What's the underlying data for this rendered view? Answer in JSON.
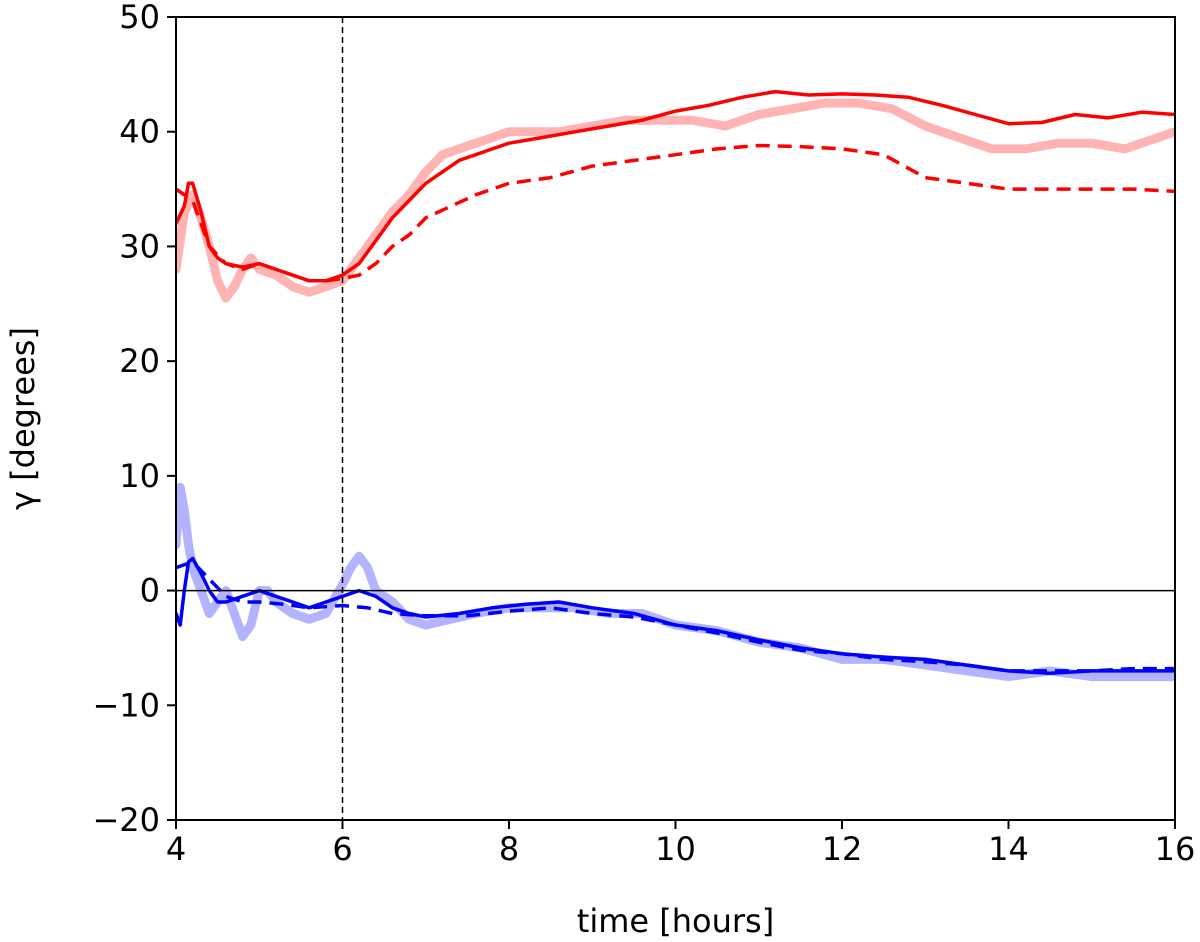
{
  "chart_data": {
    "type": "line",
    "title": "",
    "xlabel": "time [hours]",
    "ylabel": "γ [degrees]",
    "xlim": [
      4,
      16
    ],
    "ylim": [
      -20,
      50
    ],
    "x_ticks": [
      4,
      6,
      8,
      10,
      12,
      14,
      16
    ],
    "y_ticks": [
      -20,
      -10,
      0,
      10,
      20,
      30,
      40,
      50
    ],
    "y_tick_labels": [
      "−20",
      "−10",
      "0",
      "10",
      "20",
      "30",
      "40",
      "50"
    ],
    "grid": false,
    "legend": "none",
    "reference_lines": {
      "vertical_dashed_x": 6,
      "horizontal_solid_y": 0
    },
    "series": [
      {
        "style": "thick-light",
        "color": "#ffb3b3",
        "x": [
          4.0,
          4.1,
          4.2,
          4.3,
          4.4,
          4.5,
          4.6,
          4.7,
          4.8,
          4.9,
          5.0,
          5.2,
          5.4,
          5.6,
          5.8,
          6.0,
          6.2,
          6.4,
          6.6,
          6.8,
          7.0,
          7.2,
          7.4,
          7.6,
          7.8,
          8.0,
          8.3,
          8.6,
          9.0,
          9.4,
          9.8,
          10.2,
          10.6,
          11.0,
          11.4,
          11.8,
          12.2,
          12.6,
          13.0,
          13.4,
          13.8,
          14.2,
          14.6,
          15.0,
          15.4,
          15.8,
          16.0
        ],
        "values": [
          28,
          33,
          34.5,
          32.5,
          30,
          27,
          25.5,
          26.5,
          28,
          29,
          28,
          27.5,
          26.5,
          26,
          26.5,
          27,
          29,
          31,
          33,
          34.5,
          36.5,
          38,
          38.5,
          39,
          39.5,
          40,
          40,
          40,
          40.5,
          41,
          41,
          41,
          40.5,
          41.5,
          42,
          42.5,
          42.5,
          42,
          40.5,
          39.5,
          38.5,
          38.5,
          39,
          39,
          38.5,
          39.5,
          40
        ]
      },
      {
        "style": "solid",
        "color": "#ff0000",
        "x": [
          4.0,
          4.1,
          4.15,
          4.2,
          4.3,
          4.4,
          4.5,
          4.6,
          4.8,
          5.0,
          5.2,
          5.4,
          5.6,
          5.8,
          6.0,
          6.2,
          6.4,
          6.6,
          6.8,
          7.0,
          7.2,
          7.4,
          7.6,
          7.8,
          8.0,
          8.4,
          8.8,
          9.2,
          9.6,
          10.0,
          10.4,
          10.8,
          11.2,
          11.6,
          12.0,
          12.4,
          12.8,
          13.2,
          13.6,
          14.0,
          14.4,
          14.8,
          15.2,
          15.6,
          16.0
        ],
        "values": [
          32,
          33.5,
          35.5,
          35.5,
          33,
          30,
          29,
          28.5,
          28.2,
          28.5,
          28,
          27.5,
          27,
          27,
          27.5,
          28.5,
          30.5,
          32.5,
          34,
          35.5,
          36.5,
          37.5,
          38,
          38.5,
          39,
          39.5,
          40,
          40.5,
          41,
          41.8,
          42.3,
          43,
          43.5,
          43.2,
          43.3,
          43.2,
          43,
          42.3,
          41.5,
          40.7,
          40.8,
          41.5,
          41.2,
          41.7,
          41.5
        ]
      },
      {
        "style": "dashed",
        "color": "#ff0000",
        "x": [
          4.0,
          4.2,
          4.4,
          4.6,
          4.8,
          5.0,
          5.2,
          5.4,
          5.6,
          5.8,
          6.0,
          6.2,
          6.4,
          6.6,
          6.8,
          7.0,
          7.3,
          7.6,
          8.0,
          8.5,
          9.0,
          9.5,
          10.0,
          10.5,
          11.0,
          11.5,
          12.0,
          12.5,
          13.0,
          13.5,
          14.0,
          14.5,
          15.0,
          15.5,
          16.0
        ],
        "values": [
          35,
          34,
          30,
          28.5,
          28,
          28.5,
          28,
          27.5,
          27,
          27,
          27.2,
          27.5,
          28.5,
          30,
          31,
          32.5,
          33.5,
          34.5,
          35.5,
          36,
          37,
          37.5,
          38,
          38.5,
          38.8,
          38.7,
          38.5,
          38,
          36,
          35.5,
          35,
          35,
          35,
          35,
          34.8
        ]
      },
      {
        "style": "thick-light",
        "color": "#b3b3ff",
        "x": [
          4.0,
          4.05,
          4.1,
          4.15,
          4.2,
          4.3,
          4.4,
          4.5,
          4.6,
          4.7,
          4.8,
          4.9,
          5.0,
          5.1,
          5.2,
          5.4,
          5.6,
          5.8,
          6.0,
          6.1,
          6.2,
          6.3,
          6.4,
          6.6,
          6.8,
          7.0,
          7.3,
          7.6,
          8.0,
          8.4,
          8.8,
          9.2,
          9.6,
          10.0,
          10.5,
          11.0,
          11.5,
          12.0,
          12.5,
          13.0,
          13.5,
          14.0,
          14.5,
          15.0,
          15.5,
          16.0
        ],
        "values": [
          4,
          9,
          7,
          4,
          2,
          0,
          -2,
          -1,
          0,
          -2,
          -4,
          -3,
          0,
          0,
          -1,
          -2,
          -2.5,
          -2,
          0.5,
          2,
          3,
          2,
          0,
          -1,
          -2.5,
          -3,
          -2.5,
          -2,
          -1.5,
          -1.5,
          -1.5,
          -2,
          -2,
          -3,
          -3.5,
          -4.5,
          -5,
          -6,
          -6,
          -6.5,
          -7,
          -7.5,
          -7,
          -7.5,
          -7.5,
          -7.5
        ]
      },
      {
        "style": "solid",
        "color": "#0000ff",
        "x": [
          4.0,
          4.05,
          4.1,
          4.15,
          4.2,
          4.3,
          4.4,
          4.5,
          4.6,
          4.8,
          5.0,
          5.2,
          5.4,
          5.6,
          5.8,
          6.0,
          6.2,
          6.4,
          6.6,
          6.8,
          7.0,
          7.4,
          7.8,
          8.2,
          8.6,
          9.0,
          9.5,
          10.0,
          10.5,
          11.0,
          11.5,
          12.0,
          12.5,
          13.0,
          13.5,
          14.0,
          14.5,
          15.0,
          15.5,
          16.0
        ],
        "values": [
          -2,
          -3,
          0,
          2.5,
          2.8,
          1.5,
          0,
          -1,
          -1,
          -0.5,
          0,
          -0.5,
          -1,
          -1.5,
          -1,
          -0.5,
          0,
          -0.5,
          -1.5,
          -2,
          -2.3,
          -2,
          -1.5,
          -1.2,
          -1,
          -1.5,
          -2,
          -3,
          -3.5,
          -4.3,
          -5,
          -5.5,
          -5.8,
          -6,
          -6.5,
          -7,
          -7.2,
          -7,
          -7,
          -7
        ]
      },
      {
        "style": "dashed",
        "color": "#0000ff",
        "x": [
          4.0,
          4.2,
          4.4,
          4.6,
          4.8,
          5.0,
          5.3,
          5.6,
          6.0,
          6.3,
          6.6,
          7.0,
          7.5,
          8.0,
          8.5,
          9.0,
          9.5,
          10.0,
          10.5,
          11.0,
          11.5,
          12.0,
          12.5,
          13.0,
          13.5,
          14.0,
          14.5,
          15.0,
          15.5,
          16.0
        ],
        "values": [
          2,
          2.5,
          1,
          -0.5,
          -1,
          -1,
          -1.2,
          -1.5,
          -1.3,
          -1.5,
          -2,
          -2.2,
          -2.2,
          -1.8,
          -1.5,
          -2,
          -2.3,
          -3,
          -3.7,
          -4.5,
          -5.2,
          -5.5,
          -6,
          -6.2,
          -6.5,
          -7,
          -7,
          -7,
          -6.8,
          -6.8
        ]
      }
    ]
  }
}
